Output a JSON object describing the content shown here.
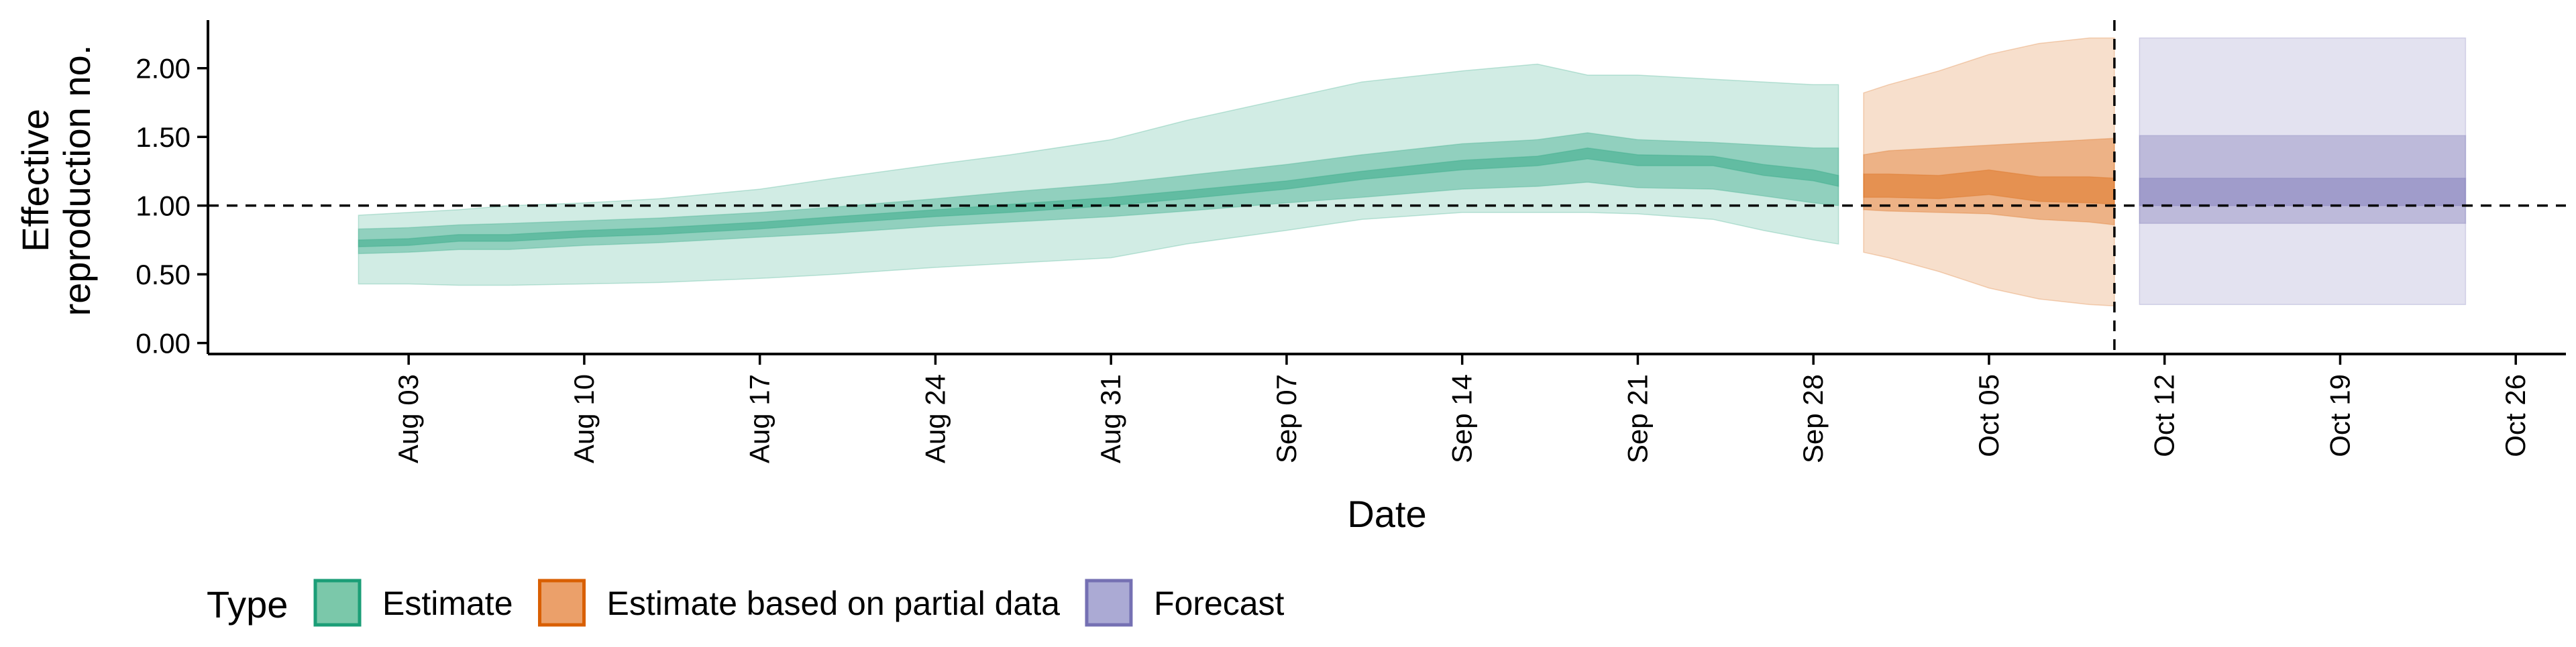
{
  "chart_data": {
    "type": "area",
    "xlabel": "Date",
    "ylabel": [
      "Effective",
      "reproduction no."
    ],
    "x_axis_type": "date",
    "xlim": [
      "2020-07-26",
      "2020-10-28"
    ],
    "ylim": [
      -0.08,
      2.35
    ],
    "x_ticks": [
      {
        "date": "2020-08-03",
        "label": "Aug 03"
      },
      {
        "date": "2020-08-10",
        "label": "Aug 10"
      },
      {
        "date": "2020-08-17",
        "label": "Aug 17"
      },
      {
        "date": "2020-08-24",
        "label": "Aug 24"
      },
      {
        "date": "2020-08-31",
        "label": "Aug 31"
      },
      {
        "date": "2020-09-07",
        "label": "Sep 07"
      },
      {
        "date": "2020-09-14",
        "label": "Sep 14"
      },
      {
        "date": "2020-09-21",
        "label": "Sep 21"
      },
      {
        "date": "2020-09-28",
        "label": "Sep 28"
      },
      {
        "date": "2020-10-05",
        "label": "Oct 05"
      },
      {
        "date": "2020-10-12",
        "label": "Oct 12"
      },
      {
        "date": "2020-10-19",
        "label": "Oct 19"
      },
      {
        "date": "2020-10-26",
        "label": "Oct 26"
      }
    ],
    "y_ticks": [
      {
        "value": 0,
        "label": "0.00"
      },
      {
        "value": 0.5,
        "label": "0.50"
      },
      {
        "value": 1.0,
        "label": "1.00"
      },
      {
        "value": 1.5,
        "label": "1.50"
      },
      {
        "value": 2.0,
        "label": "2.00"
      }
    ],
    "reference_line_y": 1.0,
    "reference_line_x": "2020-10-10",
    "grid": false,
    "legend": {
      "title": "Type",
      "position": "bottom-left",
      "entries": [
        {
          "name": "Estimate",
          "fill": "#7bc8aa",
          "stroke": "#1b9e77"
        },
        {
          "name": "Estimate based on partial data",
          "fill": "#eba06a",
          "stroke": "#d95f02"
        },
        {
          "name": "Forecast",
          "fill": "#abaad4",
          "stroke": "#7570b3"
        }
      ]
    },
    "series": [
      {
        "name": "Estimate",
        "color": "#1b9e77",
        "points": [
          {
            "date": "2020-08-01",
            "median": 0.72,
            "lower_20": 0.7,
            "upper_20": 0.75,
            "lower_50": 0.65,
            "upper_50": 0.83,
            "lower_90": 0.43,
            "upper_90": 0.93
          },
          {
            "date": "2020-08-03",
            "median": 0.73,
            "lower_20": 0.71,
            "upper_20": 0.76,
            "lower_50": 0.66,
            "upper_50": 0.84,
            "lower_90": 0.43,
            "upper_90": 0.95
          },
          {
            "date": "2020-08-05",
            "median": 0.76,
            "lower_20": 0.74,
            "upper_20": 0.79,
            "lower_50": 0.68,
            "upper_50": 0.86,
            "lower_90": 0.42,
            "upper_90": 0.97
          },
          {
            "date": "2020-08-07",
            "median": 0.76,
            "lower_20": 0.74,
            "upper_20": 0.79,
            "lower_50": 0.68,
            "upper_50": 0.87,
            "lower_90": 0.42,
            "upper_90": 1.0
          },
          {
            "date": "2020-08-10",
            "median": 0.8,
            "lower_20": 0.77,
            "upper_20": 0.82,
            "lower_50": 0.71,
            "upper_50": 0.89,
            "lower_90": 0.43,
            "upper_90": 1.02
          },
          {
            "date": "2020-08-13",
            "median": 0.82,
            "lower_20": 0.79,
            "upper_20": 0.84,
            "lower_50": 0.73,
            "upper_50": 0.91,
            "lower_90": 0.44,
            "upper_90": 1.05
          },
          {
            "date": "2020-08-17",
            "median": 0.86,
            "lower_20": 0.83,
            "upper_20": 0.88,
            "lower_50": 0.77,
            "upper_50": 0.95,
            "lower_90": 0.47,
            "upper_90": 1.12
          },
          {
            "date": "2020-08-20",
            "median": 0.9,
            "lower_20": 0.87,
            "upper_20": 0.92,
            "lower_50": 0.8,
            "upper_50": 0.99,
            "lower_90": 0.5,
            "upper_90": 1.2
          },
          {
            "date": "2020-08-24",
            "median": 0.95,
            "lower_20": 0.92,
            "upper_20": 0.97,
            "lower_50": 0.85,
            "upper_50": 1.05,
            "lower_90": 0.55,
            "upper_90": 1.3
          },
          {
            "date": "2020-08-27",
            "median": 0.98,
            "lower_20": 0.95,
            "upper_20": 1.01,
            "lower_50": 0.88,
            "upper_50": 1.1,
            "lower_90": 0.58,
            "upper_90": 1.37
          },
          {
            "date": "2020-08-31",
            "median": 1.03,
            "lower_20": 1.0,
            "upper_20": 1.06,
            "lower_50": 0.92,
            "upper_50": 1.16,
            "lower_90": 0.62,
            "upper_90": 1.48
          },
          {
            "date": "2020-09-03",
            "median": 1.08,
            "lower_20": 1.05,
            "upper_20": 1.11,
            "lower_50": 0.96,
            "upper_50": 1.22,
            "lower_90": 0.72,
            "upper_90": 1.62
          },
          {
            "date": "2020-09-07",
            "median": 1.15,
            "lower_20": 1.12,
            "upper_20": 1.18,
            "lower_50": 1.02,
            "upper_50": 1.3,
            "lower_90": 0.82,
            "upper_90": 1.78
          },
          {
            "date": "2020-09-10",
            "median": 1.22,
            "lower_20": 1.19,
            "upper_20": 1.25,
            "lower_50": 1.06,
            "upper_50": 1.37,
            "lower_90": 0.9,
            "upper_90": 1.9
          },
          {
            "date": "2020-09-14",
            "median": 1.3,
            "lower_20": 1.26,
            "upper_20": 1.33,
            "lower_50": 1.12,
            "upper_50": 1.45,
            "lower_90": 0.95,
            "upper_90": 1.98
          },
          {
            "date": "2020-09-17",
            "median": 1.33,
            "lower_20": 1.29,
            "upper_20": 1.36,
            "lower_50": 1.14,
            "upper_50": 1.48,
            "lower_90": 0.95,
            "upper_90": 2.03
          },
          {
            "date": "2020-09-19",
            "median": 1.38,
            "lower_20": 1.34,
            "upper_20": 1.42,
            "lower_50": 1.17,
            "upper_50": 1.53,
            "lower_90": 0.95,
            "upper_90": 1.95
          },
          {
            "date": "2020-09-21",
            "median": 1.33,
            "lower_20": 1.29,
            "upper_20": 1.37,
            "lower_50": 1.13,
            "upper_50": 1.48,
            "lower_90": 0.94,
            "upper_90": 1.95
          },
          {
            "date": "2020-09-24",
            "median": 1.33,
            "lower_20": 1.29,
            "upper_20": 1.36,
            "lower_50": 1.12,
            "upper_50": 1.46,
            "lower_90": 0.9,
            "upper_90": 1.92
          },
          {
            "date": "2020-09-26",
            "median": 1.26,
            "lower_20": 1.22,
            "upper_20": 1.3,
            "lower_50": 1.07,
            "upper_50": 1.44,
            "lower_90": 0.82,
            "upper_90": 1.9
          },
          {
            "date": "2020-09-28",
            "median": 1.22,
            "lower_20": 1.18,
            "upper_20": 1.26,
            "lower_50": 1.02,
            "upper_50": 1.42,
            "lower_90": 0.75,
            "upper_90": 1.88
          },
          {
            "date": "2020-09-29",
            "median": 1.18,
            "lower_20": 1.14,
            "upper_20": 1.22,
            "lower_50": 1.0,
            "upper_50": 1.42,
            "lower_90": 0.72,
            "upper_90": 1.88
          }
        ]
      },
      {
        "name": "Estimate based on partial data",
        "color": "#d95f02",
        "points": [
          {
            "date": "2020-09-30",
            "median": 1.14,
            "lower_20": 1.06,
            "upper_20": 1.23,
            "lower_50": 0.97,
            "upper_50": 1.37,
            "lower_90": 0.66,
            "upper_90": 1.82
          },
          {
            "date": "2020-10-01",
            "median": 1.14,
            "lower_20": 1.06,
            "upper_20": 1.23,
            "lower_50": 0.96,
            "upper_50": 1.4,
            "lower_90": 0.62,
            "upper_90": 1.88
          },
          {
            "date": "2020-10-03",
            "median": 1.13,
            "lower_20": 1.05,
            "upper_20": 1.22,
            "lower_50": 0.95,
            "upper_50": 1.42,
            "lower_90": 0.52,
            "upper_90": 1.98
          },
          {
            "date": "2020-10-05",
            "median": 1.18,
            "lower_20": 1.08,
            "upper_20": 1.26,
            "lower_50": 0.94,
            "upper_50": 1.44,
            "lower_90": 0.4,
            "upper_90": 2.1
          },
          {
            "date": "2020-10-07",
            "median": 1.12,
            "lower_20": 1.03,
            "upper_20": 1.21,
            "lower_50": 0.9,
            "upper_50": 1.46,
            "lower_90": 0.32,
            "upper_90": 2.18
          },
          {
            "date": "2020-10-09",
            "median": 1.12,
            "lower_20": 1.02,
            "upper_20": 1.21,
            "lower_50": 0.88,
            "upper_50": 1.48,
            "lower_90": 0.28,
            "upper_90": 2.22
          },
          {
            "date": "2020-10-10",
            "median": 1.11,
            "lower_20": 1.01,
            "upper_20": 1.2,
            "lower_50": 0.86,
            "upper_50": 1.49,
            "lower_90": 0.27,
            "upper_90": 2.22
          }
        ]
      },
      {
        "name": "Forecast",
        "color": "#7570b3",
        "points": [
          {
            "date": "2020-10-11",
            "median": 1.1,
            "lower_20": 1.0,
            "upper_20": 1.2,
            "lower_50": 0.87,
            "upper_50": 1.51,
            "lower_90": 0.28,
            "upper_90": 2.22
          },
          {
            "date": "2020-10-24",
            "median": 1.1,
            "lower_20": 1.0,
            "upper_20": 1.2,
            "lower_50": 0.87,
            "upper_50": 1.51,
            "lower_90": 0.28,
            "upper_90": 2.22
          }
        ]
      }
    ]
  }
}
